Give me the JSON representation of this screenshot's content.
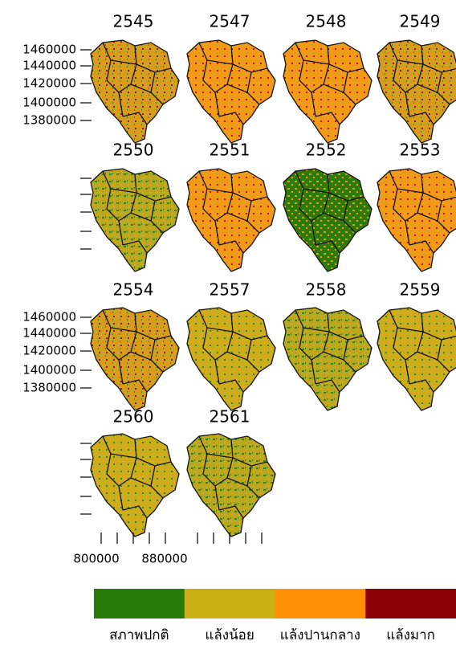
{
  "panels": [
    {
      "title": "2545"
    },
    {
      "title": "2547"
    },
    {
      "title": "2548"
    },
    {
      "title": "2549"
    },
    {
      "title": "2550"
    },
    {
      "title": "2551"
    },
    {
      "title": "2552"
    },
    {
      "title": "2553"
    },
    {
      "title": "2554"
    },
    {
      "title": "2557"
    },
    {
      "title": "2558"
    },
    {
      "title": "2559"
    },
    {
      "title": "2560"
    },
    {
      "title": "2561"
    }
  ],
  "y_axis": {
    "labels": [
      "1460000",
      "1440000",
      "1420000",
      "1400000",
      "1380000"
    ]
  },
  "x_axis": {
    "labels": [
      "800000",
      "880000"
    ]
  },
  "legend": {
    "items": [
      {
        "label": "สภาพปกติ",
        "color": "#267a06"
      },
      {
        "label": "แล้งน้อย",
        "color": "#ccaf14"
      },
      {
        "label": "แล้งปานกลาง",
        "color": "#ff8f05"
      },
      {
        "label": "แล้งมาก",
        "color": "#8a0202"
      }
    ]
  }
}
